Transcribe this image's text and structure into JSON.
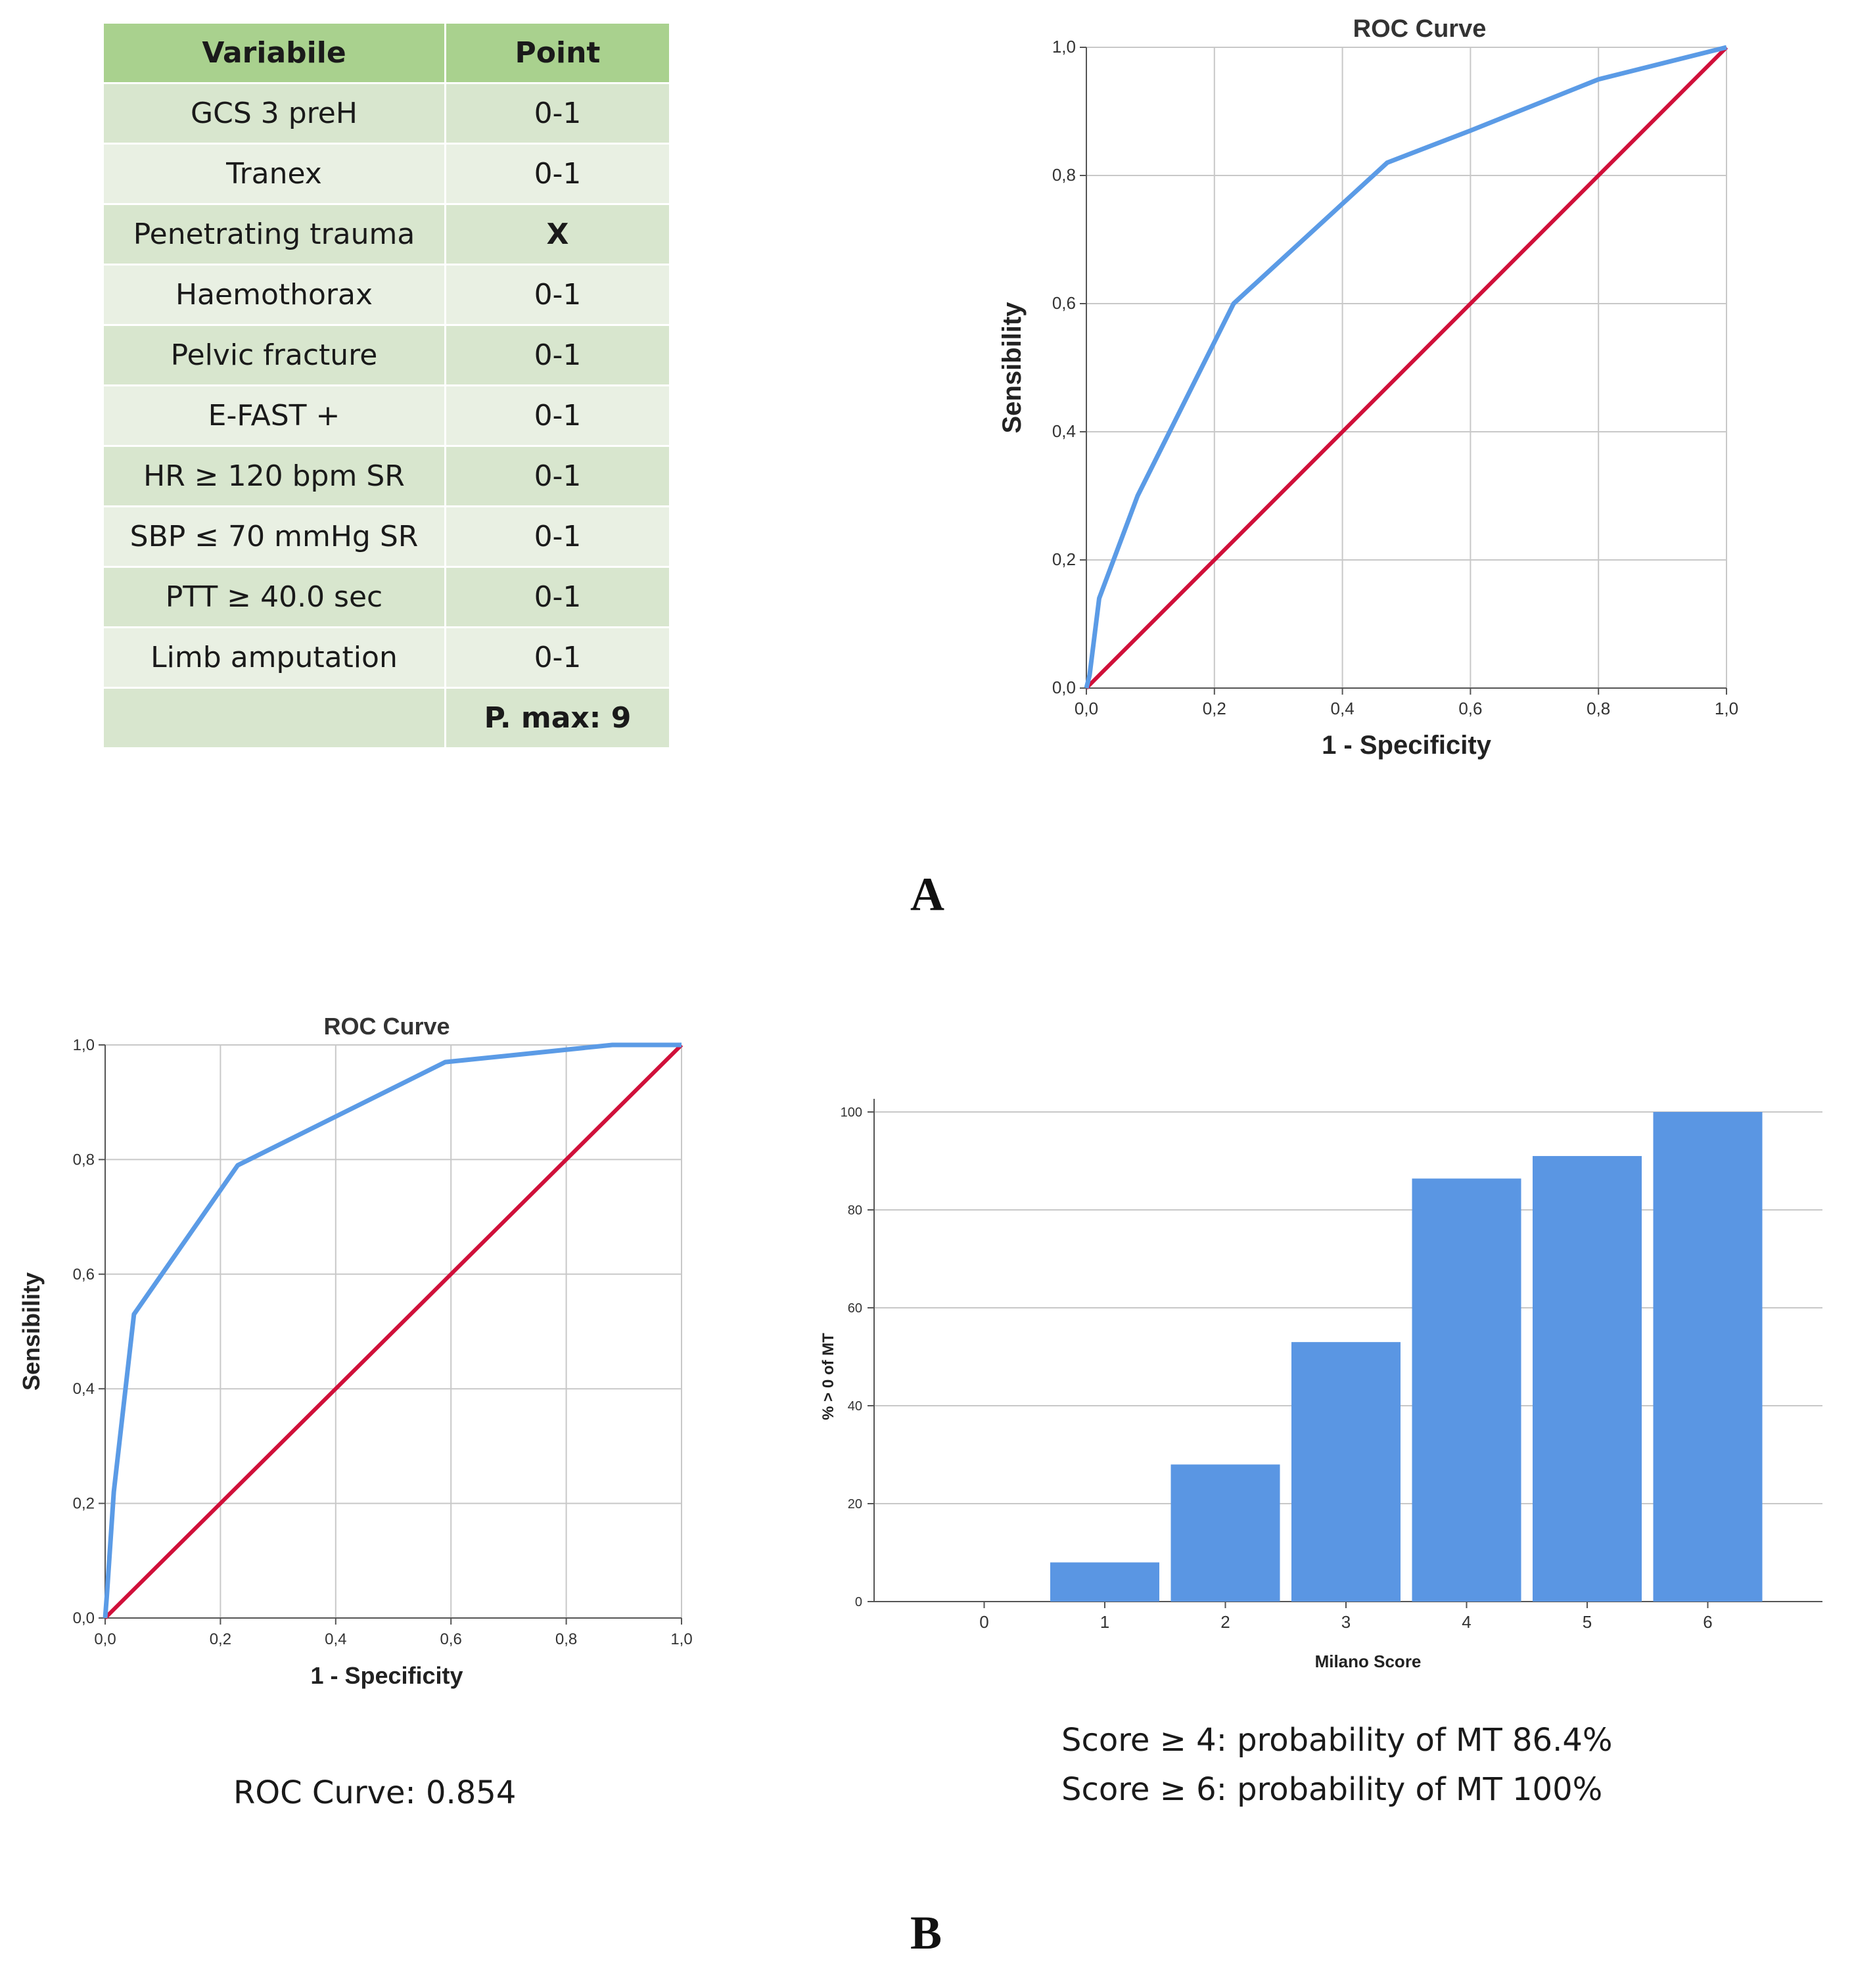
{
  "table": {
    "headers": [
      "Variabile",
      "Point"
    ],
    "rows": [
      [
        "GCS 3 preH",
        "0-1"
      ],
      [
        "Tranex",
        "0-1"
      ],
      [
        "Penetrating trauma",
        "X"
      ],
      [
        "Haemothorax",
        "0-1"
      ],
      [
        "Pelvic fracture",
        "0-1"
      ],
      [
        "E-FAST +",
        "0-1"
      ],
      [
        "HR ≥ 120 bpm SR",
        "0-1"
      ],
      [
        "SBP ≤ 70 mmHg SR",
        "0-1"
      ],
      [
        "PTT ≥ 40.0 sec",
        "0-1"
      ],
      [
        "Limb amputation",
        "0-1"
      ],
      [
        "",
        "P. max: 9"
      ]
    ]
  },
  "labels": {
    "panel_a": "A",
    "panel_b": "B",
    "roc_b_caption": "ROC Curve: 0.854",
    "bar_caption_1": "Score ≥ 4: probability of MT 86.4%",
    "bar_caption_2": "Score ≥ 6: probability of MT 100%"
  },
  "colors": {
    "roc_curve": "#5b9be6",
    "reference_line": "#d0103a",
    "bar_fill": "#5a96e3",
    "table_header": "#a9d18e",
    "table_row_odd": "#d8e6ce",
    "table_row_even": "#e9f0e3"
  },
  "chart_data": [
    {
      "type": "line",
      "title": "ROC Curve",
      "xlabel": "1 - Specificity",
      "ylabel": "Sensibility",
      "xlim": [
        0,
        1
      ],
      "ylim": [
        0,
        1
      ],
      "xticks": [
        "0,0",
        "0,2",
        "0,4",
        "0,6",
        "0,8",
        "1,0"
      ],
      "yticks": [
        "0,0",
        "0,2",
        "0,4",
        "0,6",
        "0,8",
        "1,0"
      ],
      "grid": true,
      "series": [
        {
          "x": [
            0,
            0.005,
            0.02,
            0.08,
            0.23,
            0.47,
            0.6,
            0.8,
            0.88,
            1.0
          ],
          "y": [
            0,
            0.02,
            0.14,
            0.3,
            0.6,
            0.82,
            0.87,
            0.95,
            0.97,
            1.0
          ]
        },
        {
          "x": [
            0,
            1
          ],
          "y": [
            0,
            1
          ]
        }
      ]
    },
    {
      "type": "line",
      "title": "ROC Curve",
      "xlabel": "1 - Specificity",
      "ylabel": "Sensibility",
      "xlim": [
        0,
        1
      ],
      "ylim": [
        0,
        1
      ],
      "xticks": [
        "0,0",
        "0,2",
        "0,4",
        "0,6",
        "0,8",
        "1,0"
      ],
      "yticks": [
        "0,0",
        "0,2",
        "0,4",
        "0,6",
        "0,8",
        "1,0"
      ],
      "grid": true,
      "series": [
        {
          "x": [
            0,
            0.003,
            0.015,
            0.05,
            0.23,
            0.59,
            0.88,
            1.0
          ],
          "y": [
            0,
            0.04,
            0.22,
            0.53,
            0.79,
            0.97,
            1.0,
            1.0
          ]
        },
        {
          "x": [
            0,
            1
          ],
          "y": [
            0,
            1
          ]
        }
      ]
    },
    {
      "type": "bar",
      "title": "",
      "xlabel": "Milano Score",
      "ylabel": "% > 0 of MT",
      "categories": [
        "0",
        "1",
        "2",
        "3",
        "4",
        "5",
        "6"
      ],
      "values": [
        0,
        8,
        28,
        53,
        86.4,
        91,
        100
      ],
      "ylim": [
        0,
        100
      ],
      "yticks": [
        "0",
        "20",
        "40",
        "60",
        "80",
        "100"
      ],
      "grid": true
    }
  ]
}
